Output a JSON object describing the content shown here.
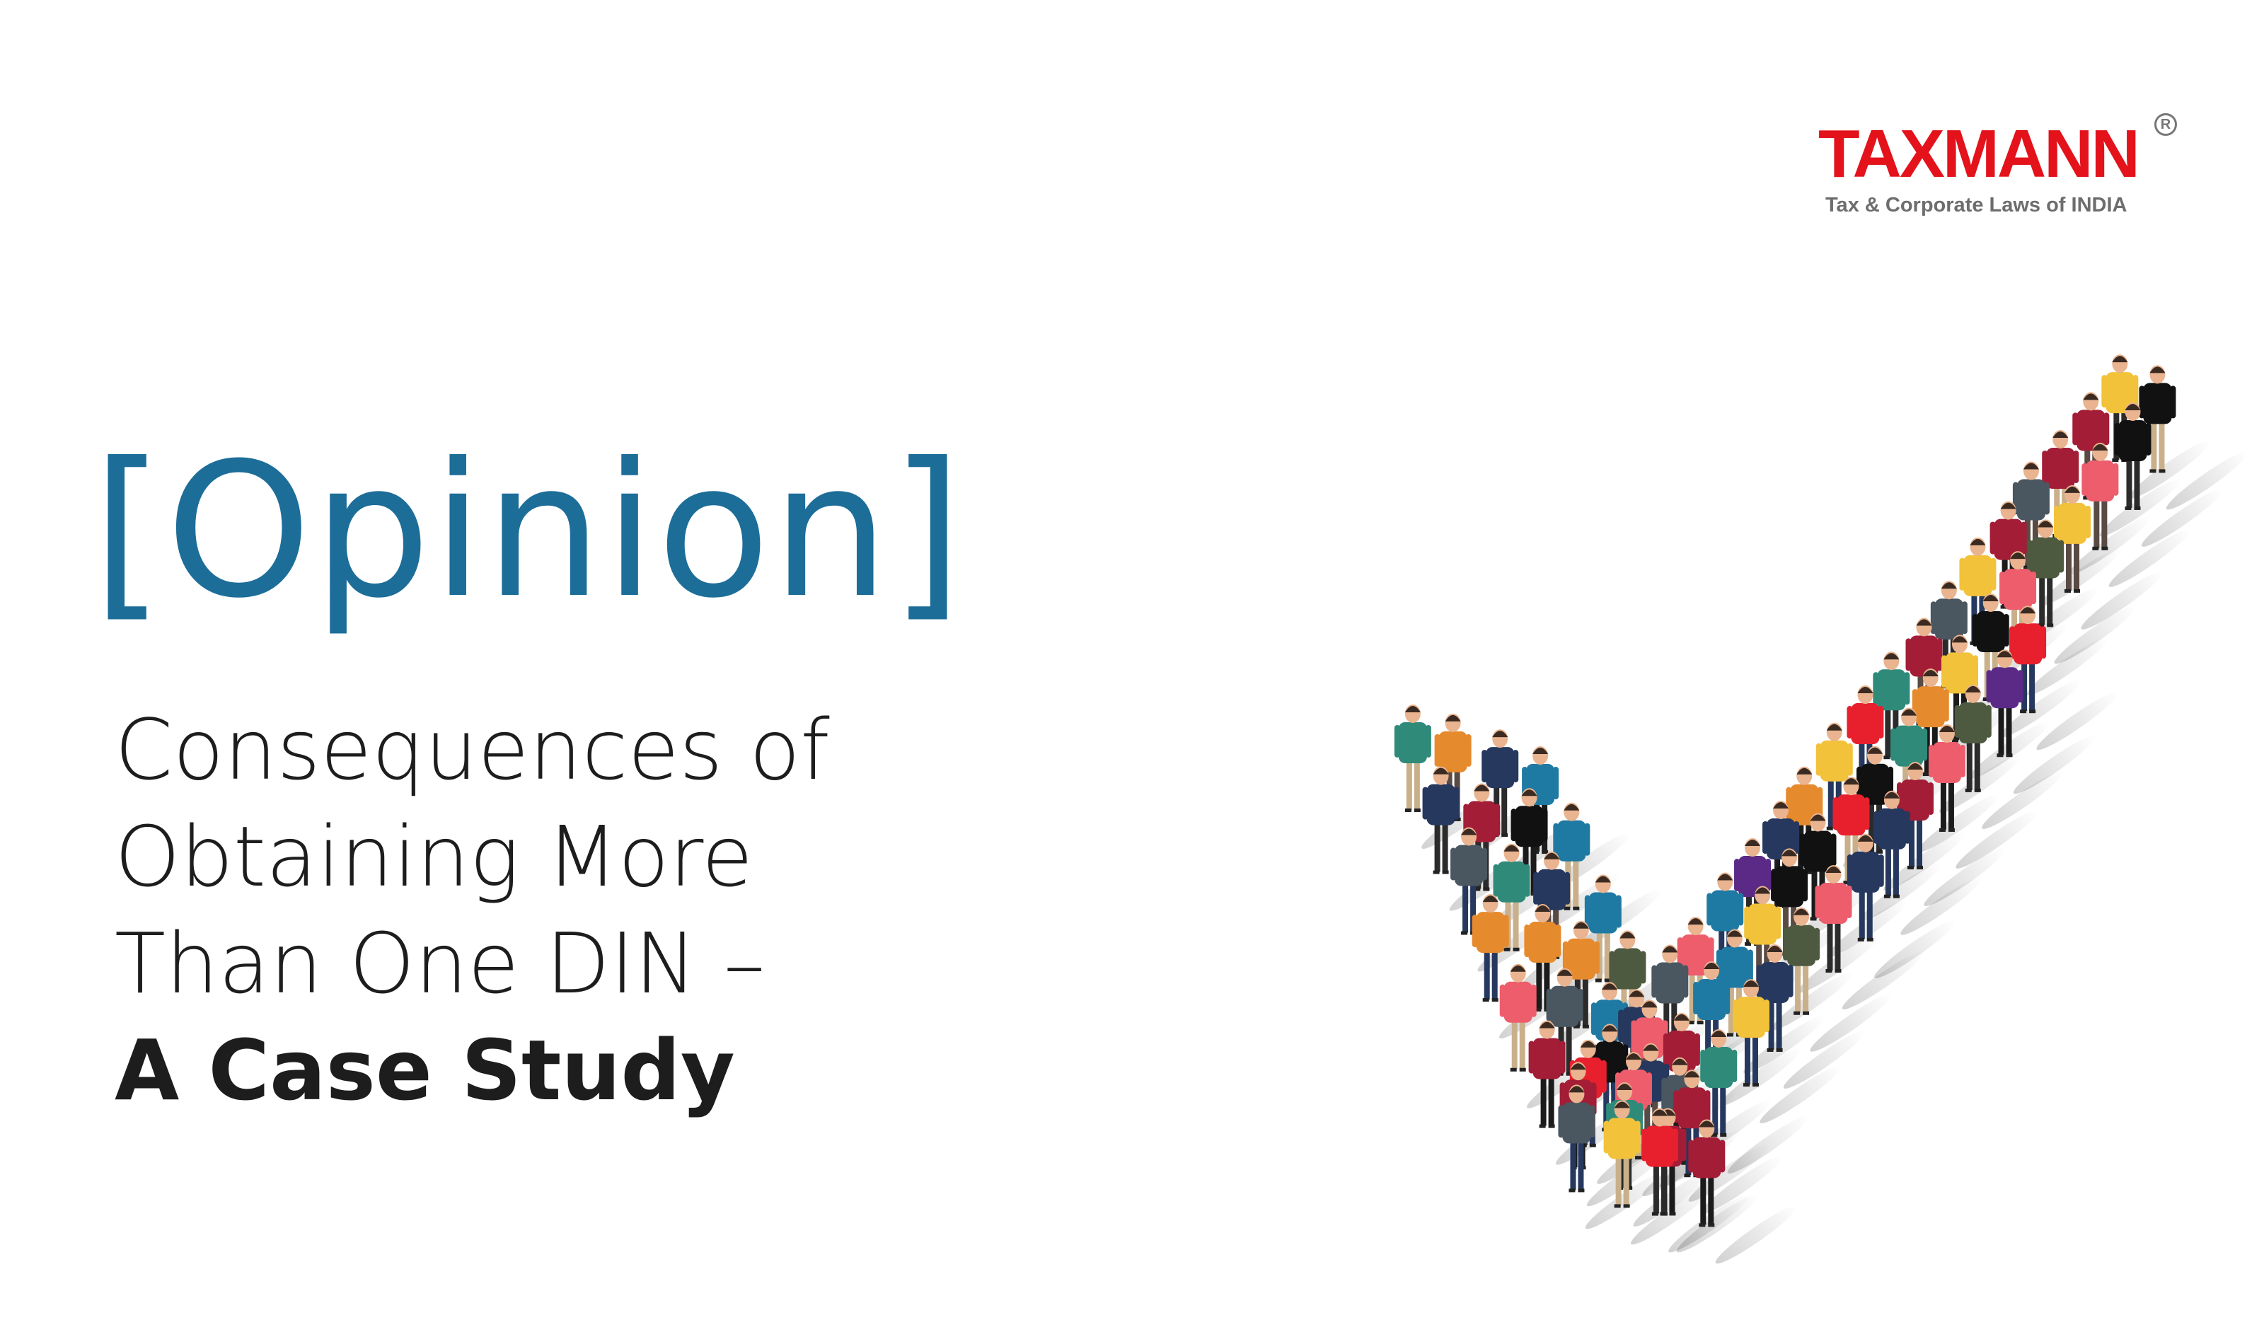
{
  "logo": {
    "wordmark": "TAXMANN",
    "registered": "R",
    "tagline": "Tax & Corporate Laws of INDIA",
    "color": "#e3121b"
  },
  "heading": {
    "label": "[Opinion]",
    "color": "#1d6d99"
  },
  "title": {
    "line1": "Consequences of",
    "line2": "Obtaining More",
    "line3": "Than One DIN –",
    "line4": "A Case Study"
  },
  "illustration": {
    "subject": "crowd-forming-checkmark",
    "palette": [
      "#e8202e",
      "#1f7aa3",
      "#2f8a7a",
      "#e68a2e",
      "#26385e",
      "#a31d36",
      "#4a5660",
      "#f2c23a",
      "#5b2a86",
      "#ee5d6c",
      "#111111",
      "#4e5a40"
    ]
  }
}
